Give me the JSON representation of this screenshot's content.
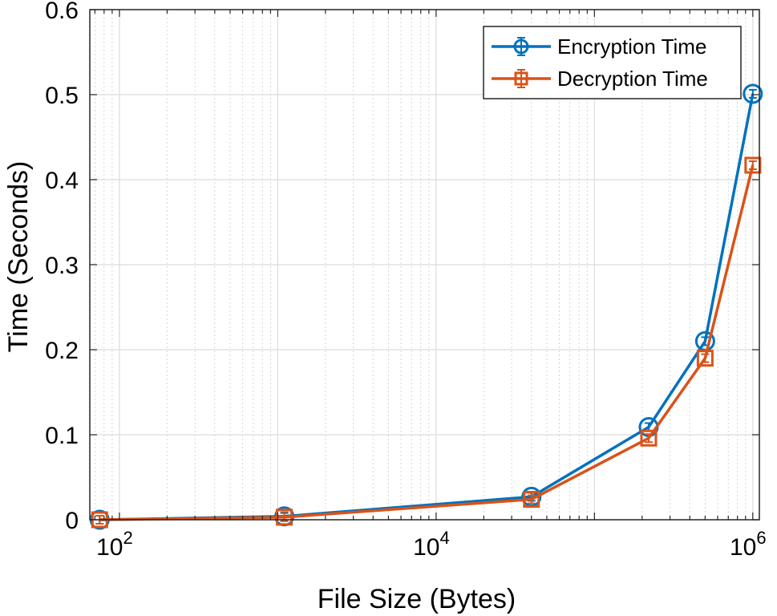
{
  "chart_data": {
    "type": "line",
    "title": "",
    "xlabel": "File Size (Bytes)",
    "ylabel": "Time (Seconds)",
    "xscale": "log",
    "xlim": [
      65,
      1100000
    ],
    "ylim": [
      0,
      0.6
    ],
    "yticks": [
      "0",
      "0.1",
      "0.2",
      "0.3",
      "0.4",
      "0.5",
      "0.6"
    ],
    "xticks": [
      {
        "base": "10",
        "exp": "2",
        "value": 100
      },
      {
        "base": "10",
        "exp": "4",
        "value": 10000
      },
      {
        "base": "10",
        "exp": "6",
        "value": 1000000
      }
    ],
    "grid": true,
    "legend_position": "top-right",
    "series": [
      {
        "name": "Encryption Time",
        "color": "#0072BD",
        "marker": "circle",
        "x": [
          75,
          1100,
          40000,
          220000,
          500000,
          1000000
        ],
        "y": [
          0.0,
          0.004,
          0.027,
          0.109,
          0.21,
          0.501
        ]
      },
      {
        "name": "Decryption Time",
        "color": "#D95319",
        "marker": "square",
        "x": [
          75,
          1100,
          40000,
          220000,
          500000,
          1000000
        ],
        "y": [
          0.0,
          0.003,
          0.024,
          0.096,
          0.19,
          0.417
        ]
      }
    ]
  }
}
